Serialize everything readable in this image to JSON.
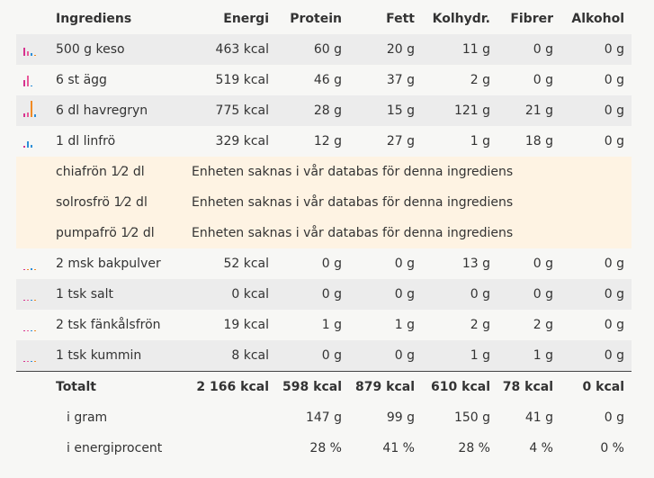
{
  "header": {
    "ingredient": "Ingrediens",
    "energy": "Energi",
    "protein": "Protein",
    "fat": "Fett",
    "carbs": "Kolhydr.",
    "fiber": "Fibrer",
    "alcohol": "Alkohol"
  },
  "rows": [
    {
      "name": "500 g keso",
      "energy": "463 kcal",
      "protein": "60 g",
      "fat": "20 g",
      "carbs": "11 g",
      "fiber": "0 g",
      "alcohol": "0 g"
    },
    {
      "name": "6 st ägg",
      "energy": "519 kcal",
      "protein": "46 g",
      "fat": "37 g",
      "carbs": "2 g",
      "fiber": "0 g",
      "alcohol": "0 g"
    },
    {
      "name": "6 dl havregryn",
      "energy": "775 kcal",
      "protein": "28 g",
      "fat": "15 g",
      "carbs": "121 g",
      "fiber": "21 g",
      "alcohol": "0 g"
    },
    {
      "name": "1 dl linfrö",
      "energy": "329 kcal",
      "protein": "12 g",
      "fat": "27 g",
      "carbs": "1 g",
      "fiber": "18 g",
      "alcohol": "0 g"
    }
  ],
  "missing": [
    {
      "name": "chiafrön 1⁄2 dl",
      "message": "Enheten saknas i vår databas för denna ingrediens"
    },
    {
      "name": "solrosfrö 1⁄2 dl",
      "message": "Enheten saknas i vår databas för denna ingrediens"
    },
    {
      "name": "pumpafrö 1⁄2 dl",
      "message": "Enheten saknas i vår databas för denna ingrediens"
    }
  ],
  "rows2": [
    {
      "name": "2 msk bakpulver",
      "energy": "52 kcal",
      "protein": "0 g",
      "fat": "0 g",
      "carbs": "13 g",
      "fiber": "0 g",
      "alcohol": "0 g"
    },
    {
      "name": "1 tsk salt",
      "energy": "0 kcal",
      "protein": "0 g",
      "fat": "0 g",
      "carbs": "0 g",
      "fiber": "0 g",
      "alcohol": "0 g"
    },
    {
      "name": "2 tsk fänkålsfrön",
      "energy": "19 kcal",
      "protein": "1 g",
      "fat": "1 g",
      "carbs": "2 g",
      "fiber": "2 g",
      "alcohol": "0 g"
    },
    {
      "name": "1 tsk kummin",
      "energy": "8 kcal",
      "protein": "0 g",
      "fat": "0 g",
      "carbs": "1 g",
      "fiber": "1 g",
      "alcohol": "0 g"
    }
  ],
  "totals": {
    "label": "Totalt",
    "energy": "2 166 kcal",
    "protein": "598 kcal",
    "fat": "879 kcal",
    "carbs": "610 kcal",
    "fiber": "78 kcal",
    "alcohol": "0 kcal"
  },
  "grams": {
    "label": "i gram",
    "protein": "147 g",
    "fat": "99 g",
    "carbs": "150 g",
    "fiber": "41 g",
    "alcohol": "0 g"
  },
  "percent": {
    "label": "i energiprocent",
    "protein": "28 %",
    "fat": "41 %",
    "carbs": "28 %",
    "fiber": "4 %",
    "alcohol": "0 %"
  },
  "colors": {
    "protein": "#d6338f",
    "fat": "#e85a9b",
    "carbs": "#2e8fd8",
    "fiber": "#f08a24"
  }
}
